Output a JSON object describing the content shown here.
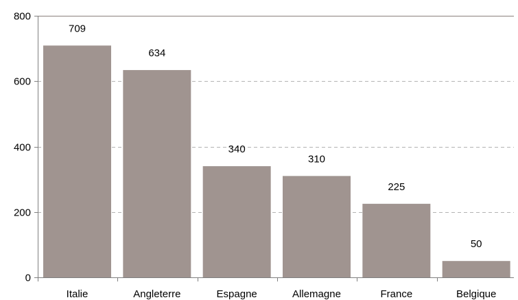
{
  "chart_data": {
    "type": "bar",
    "title": "",
    "xlabel": "",
    "ylabel": "",
    "categories": [
      "Italie",
      "Angleterre",
      "Espagne",
      "Allemagne",
      "France",
      "Belgique"
    ],
    "values": [
      709,
      634,
      340,
      310,
      225,
      50
    ],
    "data_labels": [
      "709",
      "634",
      "340",
      "310",
      "225",
      "50"
    ],
    "ylim": [
      0,
      800
    ],
    "yticks": [
      0,
      200,
      400,
      600,
      800
    ],
    "ytick_labels": [
      "0",
      "200",
      "400",
      "600",
      "800"
    ],
    "grid": true,
    "grid_style": "dashed",
    "legend": "none",
    "bar_color": "#a09490",
    "grid_color": "#b3b3b3",
    "axis_color": "#7f7f7f"
  }
}
